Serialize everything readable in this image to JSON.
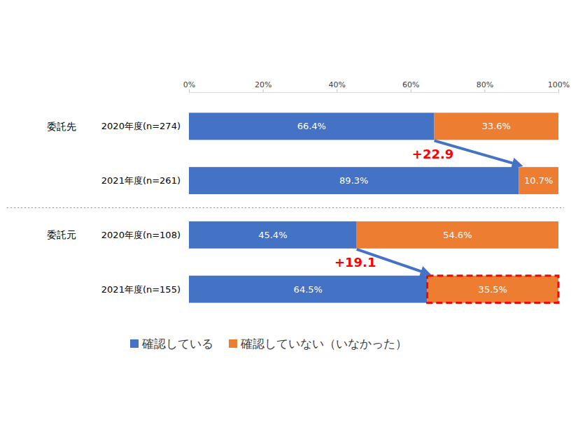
{
  "chart_data": {
    "type": "bar",
    "orientation": "horizontal",
    "stacked": true,
    "data_labels": true,
    "grid": false,
    "legend": "bottom",
    "categories": [
      "2020年度(n=274)",
      "2021年度(n=261)",
      "2020年度(n=108)",
      "2021年度(n=155)"
    ],
    "group_labels": [
      "委託先",
      null,
      "委託元",
      null
    ],
    "series": [
      {
        "name": "確認している",
        "color": "#4472c4",
        "values": [
          66.4,
          89.3,
          45.4,
          64.5
        ],
        "value_labels": [
          "66.4%",
          "89.3%",
          "45.4%",
          "64.5%"
        ]
      },
      {
        "name": "確認していない（いなかった）",
        "color": "#ed7d31",
        "values": [
          33.6,
          10.7,
          54.6,
          35.5
        ],
        "value_labels": [
          "33.6%",
          "10.7%",
          "54.6%",
          "35.5%"
        ]
      }
    ],
    "xlim": [
      0,
      100
    ],
    "xticks": [
      {
        "value": 0,
        "label": "0%"
      },
      {
        "value": 20,
        "label": "20%"
      },
      {
        "value": 40,
        "label": "40%"
      },
      {
        "value": 60,
        "label": "60%"
      },
      {
        "value": 80,
        "label": "80%"
      },
      {
        "value": 100,
        "label": "100%"
      }
    ],
    "annotations": [
      {
        "label": "+22.9",
        "value": 22.9,
        "from": 0,
        "to": 1
      },
      {
        "label": "+19.1",
        "value": 19.1,
        "from": 2,
        "to": 3
      }
    ],
    "highlight": {
      "series": 1,
      "index": 3
    }
  }
}
